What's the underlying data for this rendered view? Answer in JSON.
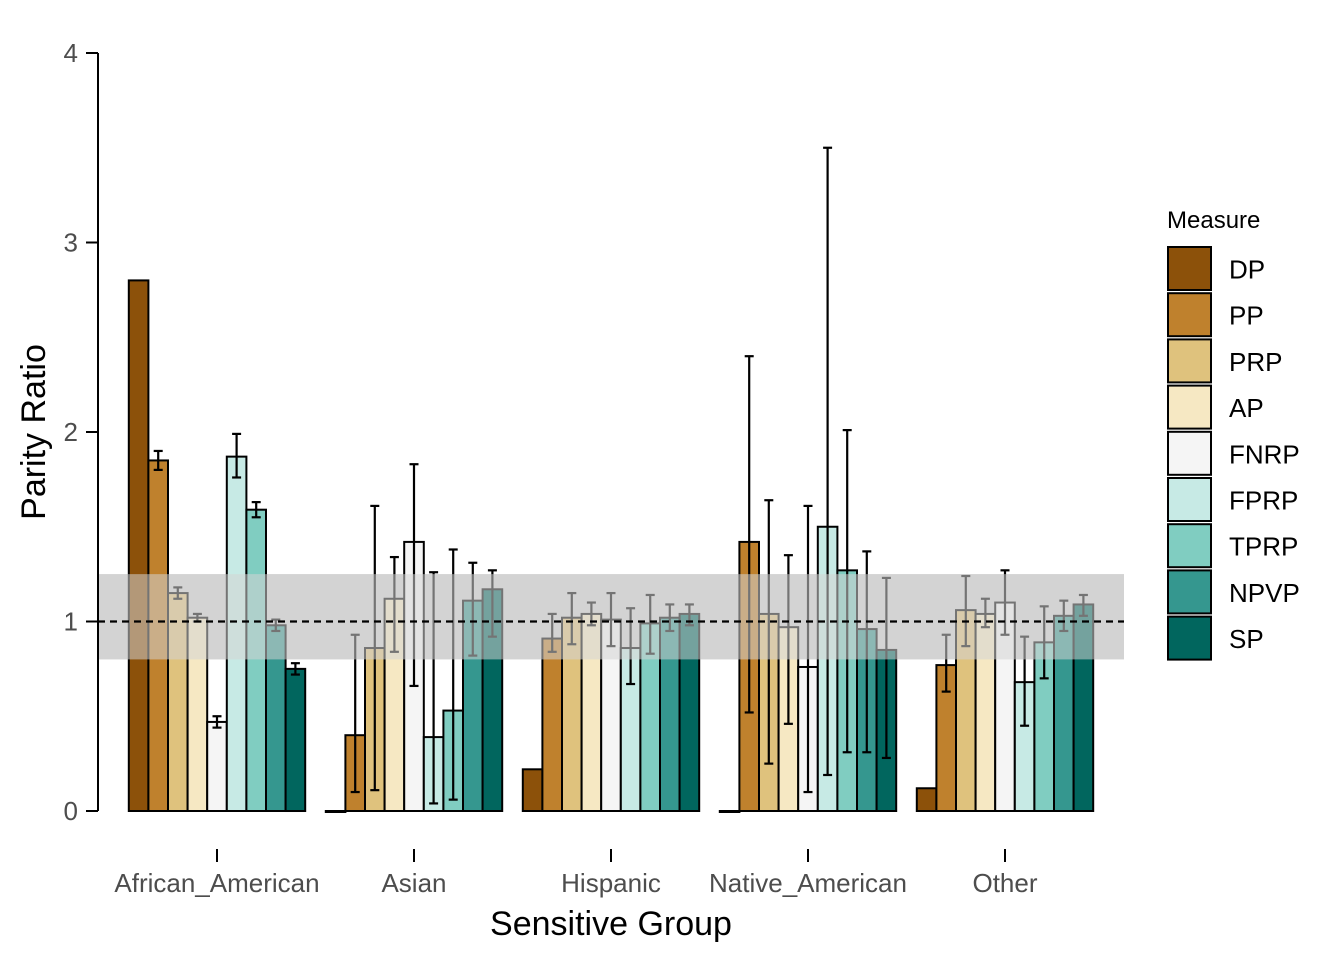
{
  "chart_data": {
    "type": "bar",
    "title": "",
    "xlabel": "Sensitive Group",
    "ylabel": "Parity Ratio",
    "ylim": [
      0,
      4
    ],
    "yticks": [
      0,
      1,
      2,
      3,
      4
    ],
    "grid": false,
    "legend": {
      "title": "Measure",
      "position": "right"
    },
    "reference": {
      "line": 1,
      "band": [
        0.8,
        1.25
      ],
      "line_style": "dashed",
      "band_color": "#d3d3d3"
    },
    "categories": [
      "African_American",
      "Asian",
      "Hispanic",
      "Native_American",
      "Other"
    ],
    "series": [
      {
        "name": "DP",
        "color": "#8c510a",
        "values": [
          2.8,
          0.0,
          0.22,
          0.0,
          0.12
        ],
        "lower": [
          null,
          null,
          null,
          null,
          null
        ],
        "upper": [
          null,
          null,
          null,
          null,
          null
        ]
      },
      {
        "name": "PP",
        "color": "#bf812d",
        "values": [
          1.85,
          0.4,
          0.91,
          1.42,
          0.77
        ],
        "lower": [
          1.8,
          0.1,
          0.84,
          0.52,
          0.63
        ],
        "upper": [
          1.9,
          0.93,
          1.04,
          2.4,
          0.93
        ]
      },
      {
        "name": "PRP",
        "color": "#dfc27d",
        "values": [
          1.15,
          0.86,
          1.02,
          1.04,
          1.06
        ],
        "lower": [
          1.12,
          0.11,
          0.88,
          0.25,
          0.87
        ],
        "upper": [
          1.18,
          1.61,
          1.15,
          1.64,
          1.24
        ]
      },
      {
        "name": "AP",
        "color": "#f6e8c3",
        "values": [
          1.02,
          1.12,
          1.04,
          0.97,
          1.04
        ],
        "lower": [
          1.0,
          0.84,
          0.98,
          0.46,
          0.97
        ],
        "upper": [
          1.04,
          1.34,
          1.1,
          1.35,
          1.12
        ]
      },
      {
        "name": "FNRP",
        "color": "#f5f5f5",
        "values": [
          0.47,
          1.42,
          1.01,
          0.76,
          1.1
        ],
        "lower": [
          0.44,
          0.66,
          0.87,
          0.1,
          0.93
        ],
        "upper": [
          0.5,
          1.83,
          1.15,
          1.61,
          1.27
        ]
      },
      {
        "name": "FPRP",
        "color": "#c7eae5",
        "values": [
          1.87,
          0.39,
          0.86,
          1.5,
          0.68
        ],
        "lower": [
          1.76,
          0.04,
          0.67,
          0.19,
          0.45
        ],
        "upper": [
          1.99,
          1.26,
          1.07,
          3.5,
          0.92
        ]
      },
      {
        "name": "TPRP",
        "color": "#80cdc1",
        "values": [
          1.59,
          0.53,
          0.99,
          1.27,
          0.89
        ],
        "lower": [
          1.55,
          0.06,
          0.83,
          0.31,
          0.7
        ],
        "upper": [
          1.63,
          1.38,
          1.14,
          2.01,
          1.08
        ]
      },
      {
        "name": "NPVP",
        "color": "#35978f",
        "values": [
          0.98,
          1.11,
          1.02,
          0.96,
          1.03
        ],
        "lower": [
          0.95,
          0.82,
          0.95,
          0.31,
          0.95
        ],
        "upper": [
          1.01,
          1.31,
          1.09,
          1.37,
          1.11
        ]
      },
      {
        "name": "SP",
        "color": "#01665e",
        "values": [
          0.75,
          1.17,
          1.04,
          0.85,
          1.09
        ],
        "lower": [
          0.72,
          0.92,
          0.98,
          0.28,
          1.03
        ],
        "upper": [
          0.78,
          1.27,
          1.09,
          1.23,
          1.14
        ]
      }
    ]
  }
}
